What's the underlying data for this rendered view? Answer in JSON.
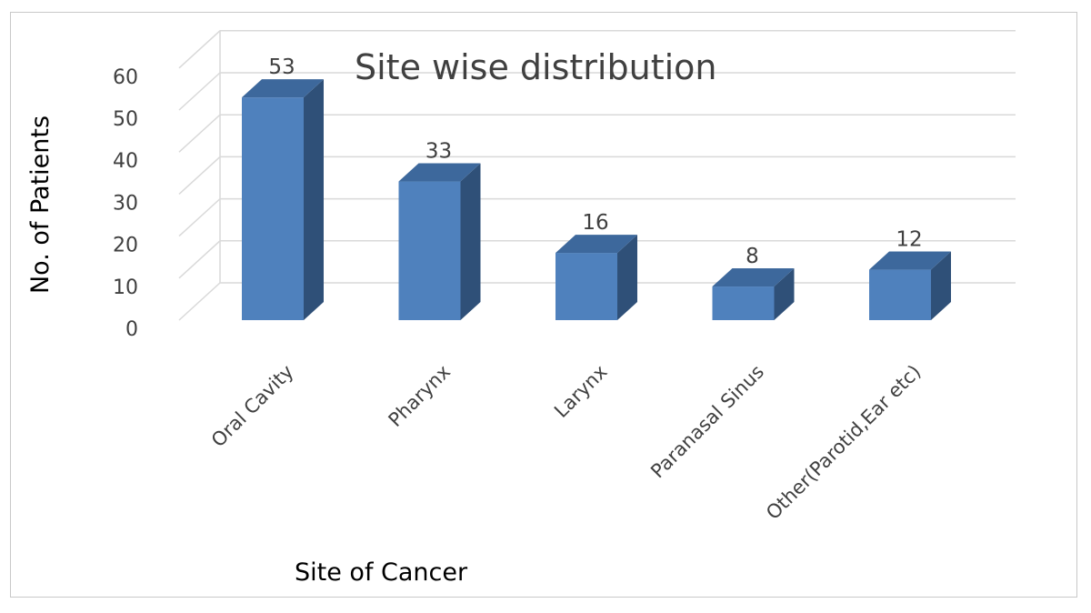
{
  "chart_data": {
    "type": "bar",
    "title": "Site wise distribution",
    "xlabel": "Site of Cancer",
    "ylabel": "No. of Patients",
    "categories": [
      "Oral Cavity",
      "Pharynx",
      "Larynx",
      "Paranasal Sinus",
      "Other(Parotid,Ear etc)"
    ],
    "values": [
      53,
      33,
      16,
      8,
      12
    ],
    "ylim": [
      0,
      60
    ],
    "yticks": [
      0,
      10,
      20,
      30,
      40,
      50,
      60
    ],
    "grid": true,
    "legend": "none",
    "style": "3d-column",
    "colors": {
      "front": "#4f81bd",
      "side": "#2f5078",
      "top": "#3d689c"
    }
  }
}
